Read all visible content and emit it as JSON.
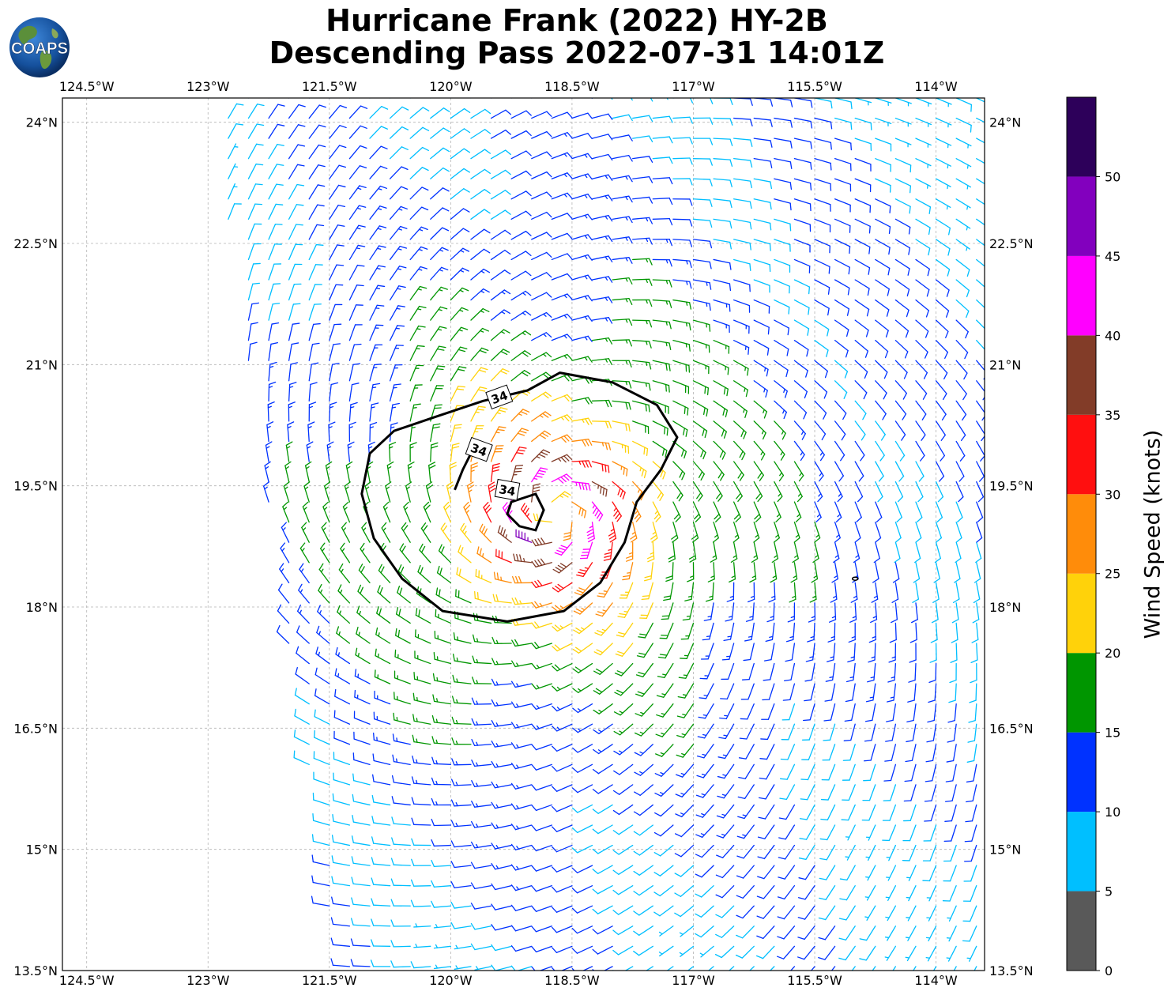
{
  "title": {
    "line1": "Hurricane Frank (2022) HY-2B",
    "line2": "Descending Pass 2022-07-31 14:01Z"
  },
  "logo": {
    "text": "COAPS",
    "icon": "globe-logo-icon"
  },
  "map": {
    "lon_range": [
      -124.8,
      -113.4
    ],
    "lat_range": [
      13.5,
      24.3
    ],
    "lon_ticks": [
      "124.5°W",
      "123°W",
      "121.5°W",
      "120°W",
      "118.5°W",
      "117°W",
      "115.5°W",
      "114°W"
    ],
    "lon_tick_values": [
      -124.5,
      -123,
      -121.5,
      -120,
      -118.5,
      -117,
      -115.5,
      -114
    ],
    "lat_ticks": [
      "13.5°N",
      "15°N",
      "16.5°N",
      "18°N",
      "19.5°N",
      "21°N",
      "22.5°N",
      "24°N"
    ],
    "lat_tick_values": [
      13.5,
      15,
      16.5,
      18,
      19.5,
      21,
      22.5,
      24
    ],
    "storm_center": {
      "lon": -118.7,
      "lat": 19.15
    },
    "contour_label": "34",
    "contour_labels": [
      "34",
      "34",
      "34"
    ],
    "grid": true
  },
  "colorbar": {
    "title": "Wind Speed (knots)",
    "ticks": [
      "0",
      "5",
      "10",
      "15",
      "20",
      "25",
      "30",
      "35",
      "40",
      "45",
      "50"
    ],
    "bands": [
      {
        "min": 0,
        "max": 5,
        "color": "#595959"
      },
      {
        "min": 5,
        "max": 10,
        "color": "#00bfff"
      },
      {
        "min": 10,
        "max": 15,
        "color": "#0032ff"
      },
      {
        "min": 15,
        "max": 20,
        "color": "#009600"
      },
      {
        "min": 20,
        "max": 25,
        "color": "#ffd20a"
      },
      {
        "min": 25,
        "max": 30,
        "color": "#ff8c0a"
      },
      {
        "min": 30,
        "max": 35,
        "color": "#ff0f0f"
      },
      {
        "min": 35,
        "max": 40,
        "color": "#823c28"
      },
      {
        "min": 40,
        "max": 45,
        "color": "#ff00ff"
      },
      {
        "min": 45,
        "max": 50,
        "color": "#8200be"
      },
      {
        "min": 50,
        "max": 55,
        "color": "#2d005a"
      }
    ]
  }
}
